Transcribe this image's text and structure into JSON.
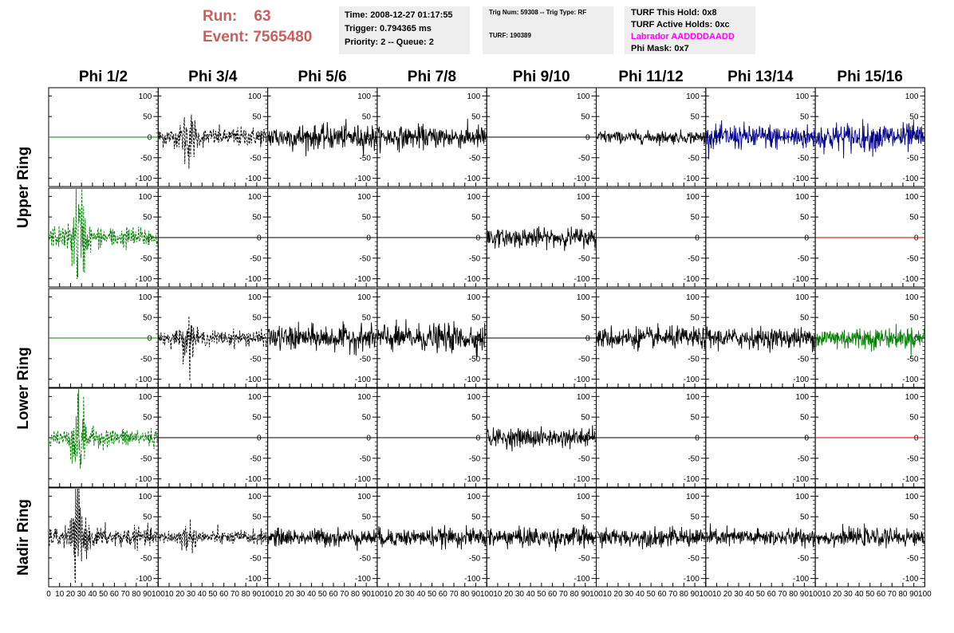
{
  "header": {
    "run_label": "Run:",
    "run_value": "63",
    "event_label": "Event:",
    "event_value": "7565480",
    "box1": [
      "Time: 2008-12-27 01:17:55",
      "Trigger: 0.794365 ms",
      "Priority: 2 -- Queue: 2"
    ],
    "box2": [
      "Trig Num: 59308 -- Trig Type: RF",
      "TURF: 190389"
    ],
    "box3": [
      "TURF This Hold: 0x8",
      "TURF Active Holds: 0xc",
      "Labrador AADDDDAADD",
      "Phi Mask: 0x7"
    ],
    "colors": {
      "run_text": "#cd5c5c",
      "labrador_text": "#ff00ff",
      "box_bg": "#eeeeee"
    }
  },
  "chart_data": {
    "type": "line",
    "columns": [
      "Phi 1/2",
      "Phi 3/4",
      "Phi 5/6",
      "Phi 7/8",
      "Phi 9/10",
      "Phi 11/12",
      "Phi 13/14",
      "Phi 15/16"
    ],
    "rows": [
      {
        "label": "Upper Ring",
        "label_group": "Upper Ring"
      },
      {
        "label": "",
        "label_group": "Upper Ring"
      },
      {
        "label": "Lower Ring",
        "label_group": "Lower Ring"
      },
      {
        "label": "",
        "label_group": "Lower Ring"
      },
      {
        "label": "Nadir Ring",
        "label_group": "Nadir Ring"
      }
    ],
    "row_titles": [
      "Upper Ring",
      "Lower Ring",
      "Nadir Ring"
    ],
    "ylim": [
      -120,
      120
    ],
    "yticks": [
      -100,
      -50,
      0,
      50,
      100
    ],
    "xlim": [
      0,
      100
    ],
    "xticks": [
      0,
      10,
      20,
      30,
      40,
      50,
      60,
      70,
      80,
      90,
      100
    ],
    "xtick_labels_first": [
      "0",
      "10",
      "20",
      "30",
      "40",
      "50",
      "60",
      "70",
      "80",
      "90",
      "100"
    ],
    "xtick_labels_other": [
      "10",
      "20",
      "30",
      "40",
      "50",
      "60",
      "70",
      "80",
      "90",
      "100"
    ],
    "panels": [
      [
        {
          "style": "flat",
          "color": "#008000",
          "amp": 0,
          "dash": false,
          "burst": 0,
          "offset": 0
        },
        {
          "style": "noise",
          "color": "#000000",
          "amp": 12,
          "dash": true,
          "burst": 0.6,
          "offset": 0
        },
        {
          "style": "noise",
          "color": "#000000",
          "amp": 16,
          "dash": false,
          "burst": 0,
          "offset": 0
        },
        {
          "style": "noise",
          "color": "#000000",
          "amp": 14,
          "dash": false,
          "burst": 0,
          "offset": 0
        },
        {
          "style": "flat",
          "color": "#000000",
          "amp": 0,
          "dash": false,
          "burst": 0,
          "offset": 0
        },
        {
          "style": "noise",
          "color": "#000000",
          "amp": 8,
          "dash": false,
          "burst": 0,
          "offset": 0
        },
        {
          "style": "noise",
          "color": "#00008b",
          "amp": 16,
          "dash": false,
          "burst": 0,
          "offset": 0
        },
        {
          "style": "noise",
          "color": "#00008b",
          "amp": 18,
          "dash": false,
          "burst": 0,
          "offset": 0
        }
      ],
      [
        {
          "style": "noise",
          "color": "#008000",
          "amp": 14,
          "dash": true,
          "burst": 1,
          "offset": 0
        },
        {
          "style": "flat",
          "color": "#000000",
          "amp": 0,
          "dash": false,
          "burst": 0,
          "offset": 0
        },
        {
          "style": "flat",
          "color": "#000000",
          "amp": 0,
          "dash": false,
          "burst": 0,
          "offset": 0
        },
        {
          "style": "flat",
          "color": "#000000",
          "amp": 0,
          "dash": false,
          "burst": 0,
          "offset": 0
        },
        {
          "style": "noise",
          "color": "#000000",
          "amp": 12,
          "dash": false,
          "burst": 0,
          "offset": 0
        },
        {
          "style": "flat",
          "color": "#000000",
          "amp": 0,
          "dash": false,
          "burst": 0,
          "offset": 0
        },
        {
          "style": "flat",
          "color": "#000000",
          "amp": 0,
          "dash": false,
          "burst": 0,
          "offset": 0
        },
        {
          "style": "flat",
          "color": "#cd0000",
          "amp": 0,
          "dash": false,
          "burst": 0,
          "offset": 0
        }
      ],
      [
        {
          "style": "flat",
          "color": "#008000",
          "amp": 0,
          "dash": false,
          "burst": 0,
          "offset": 0
        },
        {
          "style": "noise",
          "color": "#000000",
          "amp": 10,
          "dash": true,
          "burst": 0.5,
          "offset": 0
        },
        {
          "style": "noise",
          "color": "#000000",
          "amp": 16,
          "dash": false,
          "burst": 0,
          "offset": 0
        },
        {
          "style": "noise",
          "color": "#000000",
          "amp": 18,
          "dash": false,
          "burst": 0,
          "offset": 0
        },
        {
          "style": "flat",
          "color": "#000000",
          "amp": 0,
          "dash": false,
          "burst": 0,
          "offset": 0
        },
        {
          "style": "noise",
          "color": "#000000",
          "amp": 14,
          "dash": false,
          "burst": 0,
          "offset": 0
        },
        {
          "style": "noise",
          "color": "#000000",
          "amp": 13,
          "dash": false,
          "burst": 0,
          "offset": 0
        },
        {
          "style": "noise",
          "color": "#008000",
          "amp": 14,
          "dash": false,
          "burst": 0,
          "offset": 0
        }
      ],
      [
        {
          "style": "noise",
          "color": "#008000",
          "amp": 12,
          "dash": true,
          "burst": 1,
          "offset": 0
        },
        {
          "style": "flat",
          "color": "#000000",
          "amp": 0,
          "dash": false,
          "burst": 0,
          "offset": 0
        },
        {
          "style": "flat",
          "color": "#000000",
          "amp": 0,
          "dash": false,
          "burst": 0,
          "offset": 0
        },
        {
          "style": "flat",
          "color": "#000000",
          "amp": 0,
          "dash": false,
          "burst": 0,
          "offset": 0
        },
        {
          "style": "noise",
          "color": "#000000",
          "amp": 12,
          "dash": false,
          "burst": 0,
          "offset": 0
        },
        {
          "style": "flat",
          "color": "#000000",
          "amp": 0,
          "dash": false,
          "burst": 0,
          "offset": 0
        },
        {
          "style": "flat",
          "color": "#000000",
          "amp": 0,
          "dash": false,
          "burst": 0,
          "offset": 0
        },
        {
          "style": "flat",
          "color": "#cd0000",
          "amp": 0,
          "dash": false,
          "burst": 0,
          "offset": 0
        }
      ],
      [
        {
          "style": "noise",
          "color": "#000000",
          "amp": 13,
          "dash": true,
          "burst": 0.9,
          "offset": 0
        },
        {
          "style": "noise",
          "color": "#000000",
          "amp": 9,
          "dash": true,
          "burst": 0.3,
          "offset": 0
        },
        {
          "style": "noise",
          "color": "#000000",
          "amp": 11,
          "dash": false,
          "burst": 0,
          "offset": 0
        },
        {
          "style": "noise",
          "color": "#000000",
          "amp": 12,
          "dash": false,
          "burst": 0,
          "offset": 0
        },
        {
          "style": "noise",
          "color": "#000000",
          "amp": 13,
          "dash": false,
          "burst": 0,
          "offset": 0
        },
        {
          "style": "noise",
          "color": "#000000",
          "amp": 12,
          "dash": false,
          "burst": 0,
          "offset": 0
        },
        {
          "style": "noise",
          "color": "#000000",
          "amp": 11,
          "dash": false,
          "burst": 0,
          "offset": 0
        },
        {
          "style": "noise",
          "color": "#000000",
          "amp": 11,
          "dash": false,
          "burst": 0,
          "offset": 0
        }
      ]
    ],
    "grid": false
  }
}
